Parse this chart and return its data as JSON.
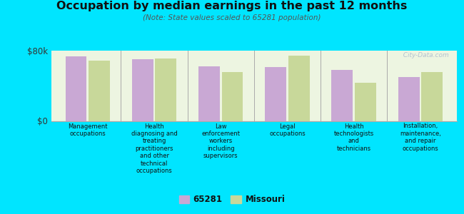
{
  "title": "Occupation by median earnings in the past 12 months",
  "subtitle": "(Note: State values scaled to 65281 population)",
  "categories": [
    "Management\noccupations",
    "Health\ndiagnosing and\ntreating\npractitioners\nand other\ntechnical\noccupations",
    "Law\nenforcement\nworkers\nincluding\nsupervisors",
    "Legal\noccupations",
    "Health\ntechnologists\nand\ntechnicians",
    "Installation,\nmaintenance,\nand repair\noccupations"
  ],
  "values_65281": [
    73000,
    70000,
    62000,
    61000,
    58000,
    50000
  ],
  "values_missouri": [
    68000,
    71000,
    55000,
    74000,
    43000,
    55000
  ],
  "color_65281": "#c9a8d4",
  "color_missouri": "#c8d89a",
  "ylim": [
    0,
    80000
  ],
  "ytick_labels": [
    "$0",
    "$80k"
  ],
  "background_color": "#edf5e1",
  "outer_background": "#00e5ff",
  "legend_label_65281": "65281",
  "legend_label_missouri": "Missouri",
  "watermark": "  City-Data.com"
}
